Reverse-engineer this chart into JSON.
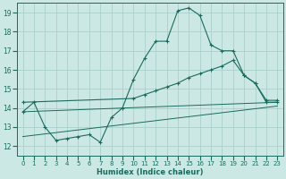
{
  "xlabel": "Humidex (Indice chaleur)",
  "xlim": [
    -0.5,
    23.5
  ],
  "ylim": [
    11.5,
    19.5
  ],
  "xticks": [
    0,
    1,
    2,
    3,
    4,
    5,
    6,
    7,
    8,
    9,
    10,
    11,
    12,
    13,
    14,
    15,
    16,
    17,
    18,
    19,
    20,
    21,
    22,
    23
  ],
  "yticks": [
    12,
    13,
    14,
    15,
    16,
    17,
    18,
    19
  ],
  "bg_color": "#cce8e4",
  "line_color": "#1a6b5e",
  "grid_color": "#aacfcb",
  "curves": [
    {
      "x": [
        0,
        1,
        2,
        3,
        4,
        5,
        6,
        7,
        8,
        9,
        10,
        11,
        12,
        13,
        14,
        15,
        16,
        17,
        18,
        19,
        20,
        21,
        22,
        23
      ],
      "y": [
        13.8,
        14.3,
        13.0,
        12.3,
        12.4,
        12.5,
        12.6,
        12.2,
        13.5,
        14.0,
        15.5,
        16.6,
        17.5,
        17.5,
        19.1,
        19.25,
        18.85,
        17.3,
        17.0,
        17.0,
        15.7,
        15.3,
        14.3,
        14.3
      ],
      "marker": true
    },
    {
      "x": [
        0,
        10,
        11,
        12,
        13,
        14,
        15,
        16,
        17,
        18,
        19,
        20,
        21,
        22,
        23
      ],
      "y": [
        14.3,
        14.5,
        14.7,
        14.9,
        15.1,
        15.3,
        15.6,
        15.8,
        16.0,
        16.2,
        16.5,
        15.7,
        15.3,
        14.4,
        14.4
      ],
      "marker": true
    },
    {
      "x": [
        0,
        23
      ],
      "y": [
        13.8,
        14.3
      ],
      "marker": false
    },
    {
      "x": [
        0,
        23
      ],
      "y": [
        12.5,
        14.1
      ],
      "marker": false
    }
  ]
}
